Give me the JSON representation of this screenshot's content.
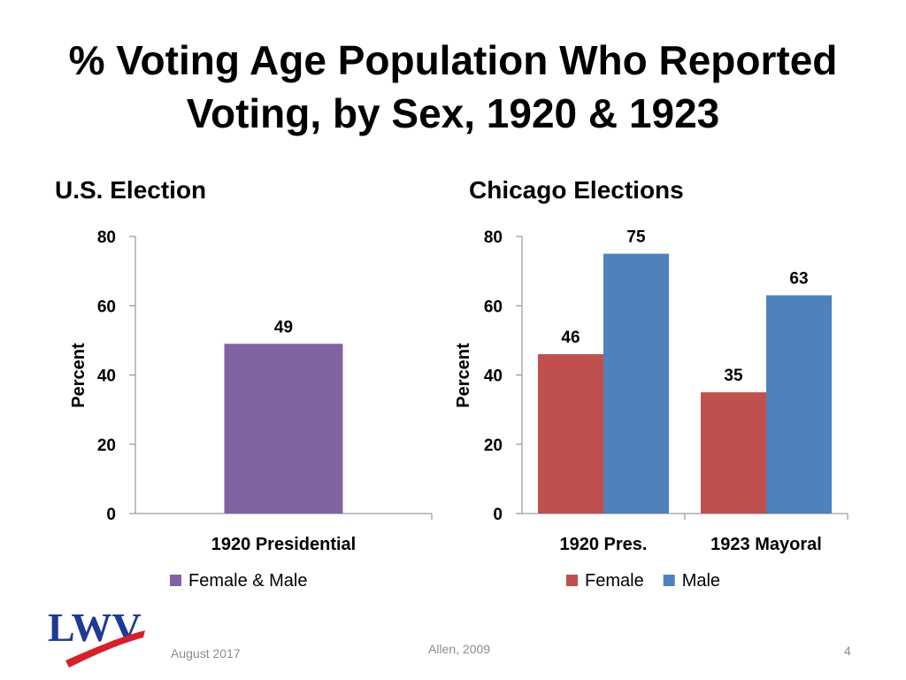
{
  "title_line1": "% Voting Age Population Who Reported",
  "title_line2": "Voting, by Sex, 1920 & 1923",
  "footer": {
    "date": "August 2017",
    "source": "Allen, 2009",
    "page": "4"
  },
  "logo_text": "LWV",
  "colors": {
    "female_male": "#8064A2",
    "female": "#C0504D",
    "male": "#4F81BD",
    "axis": "#868686"
  },
  "chart_data": [
    {
      "type": "bar",
      "title": "U.S. Election",
      "ylabel": "Percent",
      "xlabel": "",
      "ylim": [
        0,
        80
      ],
      "yticks": [
        0,
        20,
        40,
        60,
        80
      ],
      "categories": [
        "1920 Presidential"
      ],
      "series": [
        {
          "name": "Female & Male",
          "color": "#8064A2",
          "values": [
            49
          ]
        }
      ],
      "legend": "bottom"
    },
    {
      "type": "bar",
      "title": "Chicago Elections",
      "ylabel": "Percent",
      "xlabel": "",
      "ylim": [
        0,
        80
      ],
      "yticks": [
        0,
        20,
        40,
        60,
        80
      ],
      "categories": [
        "1920 Pres.",
        "1923 Mayoral"
      ],
      "series": [
        {
          "name": "Female",
          "color": "#C0504D",
          "values": [
            46,
            35
          ]
        },
        {
          "name": "Male",
          "color": "#4F81BD",
          "values": [
            75,
            63
          ]
        }
      ],
      "legend": "bottom"
    }
  ]
}
